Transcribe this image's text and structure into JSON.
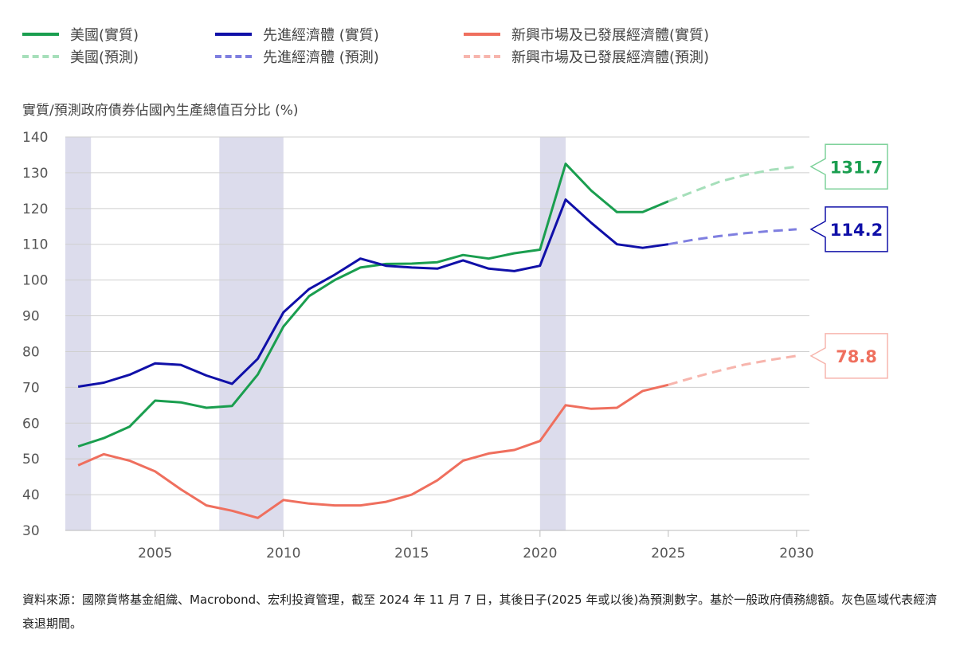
{
  "legend": [
    {
      "label": "美國(實質)",
      "color": "#1a9e4f",
      "dashed": false
    },
    {
      "label": "先進經濟體 (實質)",
      "color": "#1010a8",
      "dashed": false
    },
    {
      "label": "新興市場及已發展經濟體(實質)",
      "color": "#ef6f5e",
      "dashed": false
    },
    {
      "label": "美國(預測)",
      "color": "#a6dfba",
      "dashed": true
    },
    {
      "label": "先進經濟體 (預測)",
      "color": "#7f7fe0",
      "dashed": true
    },
    {
      "label": "新興市場及已發展經濟體(預測)",
      "color": "#f7b5ad",
      "dashed": true
    }
  ],
  "ylabel": "實質/預測政府債券佔國內生產總值百分比 (%)",
  "source_text": "資料來源：國際貨幣基金組織、Macrobond、宏利投資管理，截至 2024 年 11 月 7 日，其後日子(2025 年或以後)為預測數字。基於一般政府債務總額。灰色區域代表經濟衰退期間。",
  "chart_data": {
    "type": "line",
    "ylim": [
      30,
      140
    ],
    "xlim": [
      2001.5,
      2030.5
    ],
    "yticks": [
      30,
      40,
      50,
      60,
      70,
      80,
      90,
      100,
      110,
      120,
      130,
      140
    ],
    "xticks": [
      2005,
      2010,
      2015,
      2020,
      2025,
      2030
    ],
    "recessions": [
      [
        2001.5,
        2002.5
      ],
      [
        2007.5,
        2010
      ],
      [
        2020,
        2021
      ]
    ],
    "series": [
      {
        "name": "美國(實質)",
        "color": "#1a9e4f",
        "dashed": false,
        "x": [
          2002,
          2003,
          2004,
          2005,
          2006,
          2007,
          2008,
          2009,
          2010,
          2011,
          2012,
          2013,
          2014,
          2015,
          2016,
          2017,
          2018,
          2019,
          2020,
          2021,
          2022,
          2023,
          2024,
          2025
        ],
        "y": [
          53.5,
          55.8,
          59,
          66.3,
          65.8,
          64.3,
          64.8,
          73.6,
          87,
          95.5,
          100,
          103.5,
          104.5,
          104.6,
          105,
          107,
          106,
          107.5,
          108.5,
          132.5,
          125,
          119,
          119,
          122
        ]
      },
      {
        "name": "美國(預測)",
        "color": "#a6dfba",
        "dashed": true,
        "x": [
          2025,
          2026,
          2027,
          2028,
          2029,
          2030
        ],
        "y": [
          122,
          124.8,
          127.5,
          129.4,
          130.8,
          131.7
        ]
      },
      {
        "name": "先進經濟體 (實質)",
        "color": "#1010a8",
        "dashed": false,
        "x": [
          2002,
          2003,
          2004,
          2005,
          2006,
          2007,
          2008,
          2009,
          2010,
          2011,
          2012,
          2013,
          2014,
          2015,
          2016,
          2017,
          2018,
          2019,
          2020,
          2021,
          2022,
          2023,
          2024,
          2025
        ],
        "y": [
          70.2,
          71.3,
          73.5,
          76.7,
          76.3,
          73.3,
          71,
          78,
          91,
          97.5,
          101.5,
          106,
          104,
          103.5,
          103.2,
          105.5,
          103.2,
          102.5,
          104,
          122.5,
          116,
          110,
          109,
          110
        ]
      },
      {
        "name": "先進經濟體 (預測)",
        "color": "#7f7fe0",
        "dashed": true,
        "x": [
          2025,
          2026,
          2027,
          2028,
          2029,
          2030
        ],
        "y": [
          110,
          111.3,
          112.3,
          113.1,
          113.7,
          114.2
        ]
      },
      {
        "name": "新興市場及已發展經濟體(實質)",
        "color": "#ef6f5e",
        "dashed": false,
        "x": [
          2002,
          2003,
          2004,
          2005,
          2006,
          2007,
          2008,
          2009,
          2010,
          2011,
          2012,
          2013,
          2014,
          2015,
          2016,
          2017,
          2018,
          2019,
          2020,
          2021,
          2022,
          2023,
          2024,
          2025
        ],
        "y": [
          48.2,
          51.3,
          49.5,
          46.5,
          41.5,
          37,
          35.5,
          33.5,
          38.5,
          37.5,
          37,
          37,
          38,
          40,
          44,
          49.5,
          51.5,
          52.5,
          55,
          65,
          64,
          64.3,
          69,
          70.7
        ]
      },
      {
        "name": "新興市場及已發展經濟體(預測)",
        "color": "#f7b5ad",
        "dashed": true,
        "x": [
          2025,
          2026,
          2027,
          2028,
          2029,
          2030
        ],
        "y": [
          70.7,
          72.8,
          74.7,
          76.4,
          77.7,
          78.8
        ]
      }
    ],
    "end_labels": [
      {
        "text": "131.7",
        "value": 131.7,
        "color": "#1a9e4f",
        "border": "#7fd29b"
      },
      {
        "text": "114.2",
        "value": 114.2,
        "color": "#1010a8",
        "border": "#1010a8"
      },
      {
        "text": "78.8",
        "value": 78.8,
        "color": "#ef6f5e",
        "border": "#f7b5ad"
      }
    ]
  }
}
